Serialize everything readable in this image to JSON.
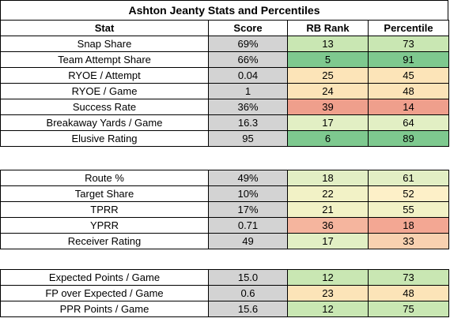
{
  "title": "Ashton Jeanty Stats and Percentiles",
  "headers": [
    "Stat",
    "Score",
    "RB Rank",
    "Percentile"
  ],
  "colors": {
    "score_bg": "#d3d3d3",
    "dark_green": "#7ec98f",
    "green": "#a9d9a1",
    "light_green": "#c9e7b3",
    "pale_green": "#e2efc4",
    "pale_yellow": "#f2f2c6",
    "light_orange": "#fce4b8",
    "peach": "#f8d1b0",
    "salmon": "#ef9f8c"
  },
  "sections": [
    {
      "rows": [
        {
          "stat": "Snap Share",
          "score": "69%",
          "rank": "13",
          "rank_color": "#c9e7b3",
          "pct": "73",
          "pct_color": "#c9e7b3"
        },
        {
          "stat": "Team Attempt Share",
          "score": "66%",
          "rank": "5",
          "rank_color": "#7ec98f",
          "pct": "91",
          "pct_color": "#7ec98f"
        },
        {
          "stat": "RYOE / Attempt",
          "score": "0.04",
          "rank": "25",
          "rank_color": "#fce4b8",
          "pct": "45",
          "pct_color": "#fce4b8"
        },
        {
          "stat": "RYOE / Game",
          "score": "1",
          "rank": "24",
          "rank_color": "#fce4b8",
          "pct": "48",
          "pct_color": "#fce4b8"
        },
        {
          "stat": "Success Rate",
          "score": "36%",
          "rank": "39",
          "rank_color": "#ef9f8c",
          "pct": "14",
          "pct_color": "#ef9f8c"
        },
        {
          "stat": "Breakaway Yards / Game",
          "score": "16.3",
          "rank": "17",
          "rank_color": "#e2efc4",
          "pct": "64",
          "pct_color": "#e2efc4"
        },
        {
          "stat": "Elusive Rating",
          "score": "95",
          "rank": "6",
          "rank_color": "#7ec98f",
          "pct": "89",
          "pct_color": "#7ec98f"
        }
      ]
    },
    {
      "rows": [
        {
          "stat": "Route %",
          "score": "49%",
          "rank": "18",
          "rank_color": "#e2efc4",
          "pct": "61",
          "pct_color": "#e2efc4"
        },
        {
          "stat": "Target Share",
          "score": "10%",
          "rank": "22",
          "rank_color": "#f2f2c6",
          "pct": "52",
          "pct_color": "#fdf0c8"
        },
        {
          "stat": "TPRR",
          "score": "17%",
          "rank": "21",
          "rank_color": "#f2f2c6",
          "pct": "55",
          "pct_color": "#f2f2c6"
        },
        {
          "stat": "YPRR",
          "score": "0.71",
          "rank": "36",
          "rank_color": "#f5b59e",
          "pct": "18",
          "pct_color": "#f3a793"
        },
        {
          "stat": "Receiver Rating",
          "score": "49",
          "rank": "17",
          "rank_color": "#e2efc4",
          "pct": "33",
          "pct_color": "#f8d1b0"
        }
      ]
    },
    {
      "rows": [
        {
          "stat": "Expected Points / Game",
          "score": "15.0",
          "rank": "12",
          "rank_color": "#c9e7b3",
          "pct": "73",
          "pct_color": "#c9e7b3"
        },
        {
          "stat": "FP over Expected / Game",
          "score": "0.6",
          "rank": "23",
          "rank_color": "#fce4b8",
          "pct": "48",
          "pct_color": "#fce4b8"
        },
        {
          "stat": "PPR Points / Game",
          "score": "15.6",
          "rank": "12",
          "rank_color": "#c9e7b3",
          "pct": "75",
          "pct_color": "#c9e7b3"
        }
      ]
    }
  ]
}
